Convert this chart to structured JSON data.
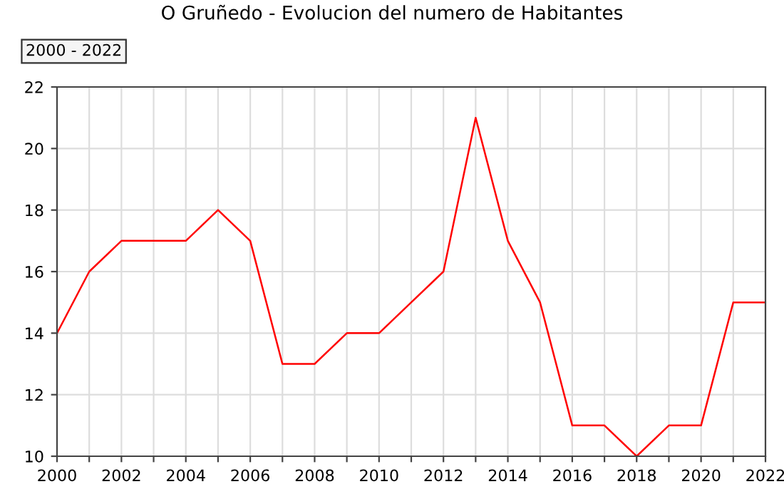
{
  "chart_data": {
    "type": "line",
    "title": "O Gruñedo - Evolucion del numero de Habitantes",
    "subtitle": "2000 - 2022",
    "x": [
      2000,
      2001,
      2002,
      2003,
      2004,
      2005,
      2006,
      2007,
      2008,
      2009,
      2010,
      2011,
      2012,
      2013,
      2014,
      2015,
      2016,
      2017,
      2018,
      2019,
      2020,
      2021,
      2022
    ],
    "series": [
      {
        "color": "#ff0000",
        "values": [
          14,
          16,
          17,
          17,
          17,
          18,
          17,
          13,
          13,
          14,
          14,
          15,
          16,
          21,
          17,
          15,
          11,
          11,
          10,
          11,
          11,
          15,
          15
        ]
      }
    ],
    "xlim": [
      2000,
      2022
    ],
    "xticks": [
      2000,
      {
        "value": 2001,
        "label": null
      },
      2002,
      {
        "value": 2003,
        "label": null
      },
      2004,
      {
        "value": 2005,
        "label": null
      },
      2006,
      {
        "value": 2007,
        "label": null
      },
      2008,
      {
        "value": 2009,
        "label": null
      },
      2010,
      {
        "value": 2011,
        "label": null
      },
      2012,
      {
        "value": 2013,
        "label": null
      },
      2014,
      {
        "value": 2015,
        "label": null
      },
      2016,
      {
        "value": 2017,
        "label": null
      },
      2018,
      {
        "value": 2019,
        "label": null
      },
      2020,
      {
        "value": 2021,
        "label": null
      },
      2022
    ],
    "ylim": [
      10,
      22
    ],
    "yticks": [
      10,
      12,
      14,
      16,
      18,
      20,
      22
    ],
    "grid": true,
    "marker": "none",
    "line_style": "solid",
    "legend": false
  }
}
